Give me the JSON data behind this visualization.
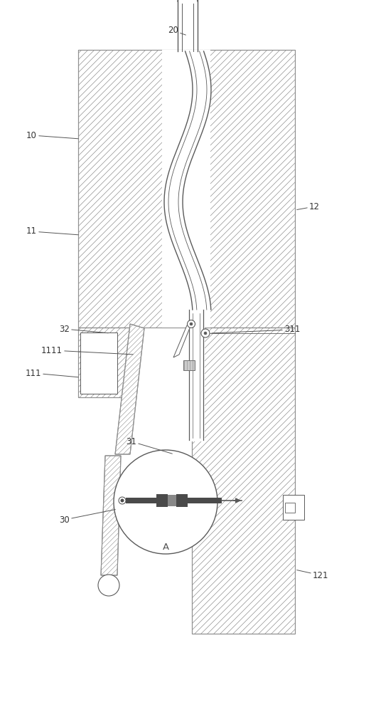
{
  "bg_color": "#ffffff",
  "line_color": "#5a5a5a",
  "hatch_color": "#909090",
  "dark_fill": "#4a4a4a",
  "figsize": [
    5.22,
    10.0
  ],
  "dpi": 100
}
